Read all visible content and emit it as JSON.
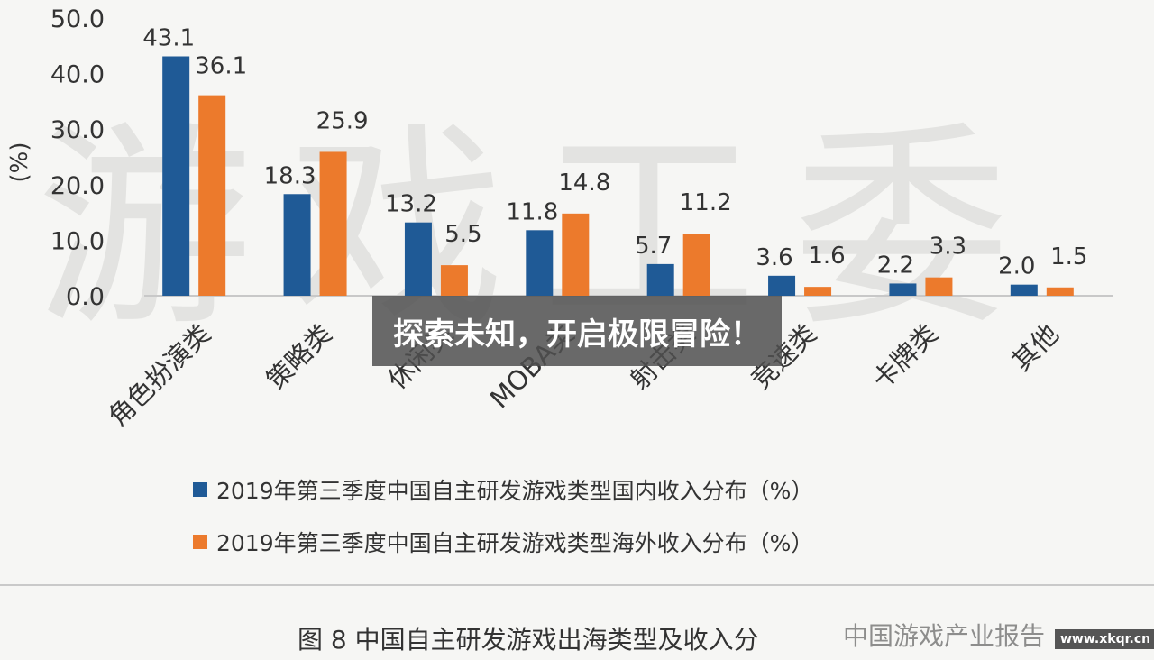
{
  "chart_data": {
    "type": "bar",
    "title": "",
    "ylabel": "(%)",
    "xlabel": "",
    "ylim": [
      0,
      50
    ],
    "yticks": [
      "0.0",
      "10.0",
      "20.0",
      "30.0",
      "40.0",
      "50.0"
    ],
    "categories": [
      "角色扮演类",
      "策略类",
      "休闲类",
      "MOBA类",
      "射击类",
      "竞速类",
      "卡牌类",
      "其他"
    ],
    "series": [
      {
        "name": "2019年第三季度中国自主研发游戏类型国内收入分布（%）",
        "color": "#1f5a96",
        "values": [
          43.1,
          18.3,
          13.2,
          11.8,
          5.7,
          3.6,
          2.2,
          2.0
        ]
      },
      {
        "name": "2019年第三季度中国自主研发游戏类型海外收入分布（%）",
        "color": "#ec7a2c",
        "values": [
          36.1,
          25.9,
          5.5,
          14.8,
          11.2,
          1.6,
          3.3,
          1.5
        ]
      }
    ],
    "data_labels": [
      [
        "43.1",
        "18.3",
        "13.2",
        "11.8",
        "5.7",
        "3.6",
        "2.2",
        "2.0"
      ],
      [
        "36.1",
        "25.9",
        "5.5",
        "14.8",
        "11.2",
        "1.6",
        "3.3",
        "1.5"
      ]
    ],
    "grid": false,
    "legend": "bottom"
  },
  "watermark": "游戏工委",
  "caption": "图 8 中国自主研发游戏出海类型及收入分",
  "credit": "中国游戏产业报告",
  "banner": "探索未知，开启极限冒险！",
  "site_badge": "www.xkqr.cn"
}
